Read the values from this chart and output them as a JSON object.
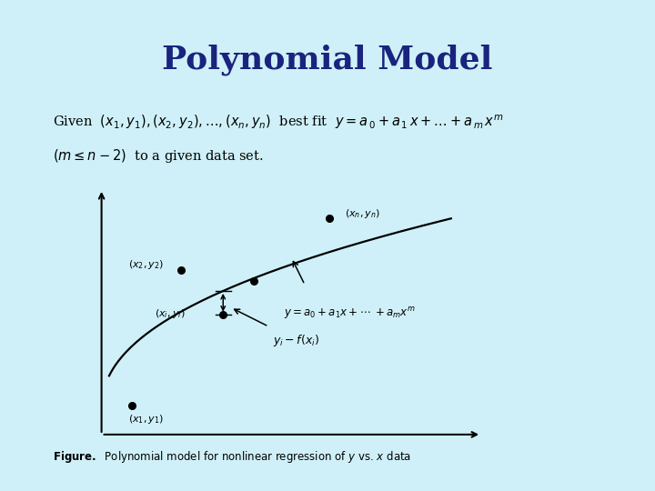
{
  "background_color": "#cff0f8",
  "title": "Polynomial Model",
  "title_color": "#1a237e",
  "title_fontsize": 26,
  "fig_width": 7.2,
  "fig_height": 5.4
}
